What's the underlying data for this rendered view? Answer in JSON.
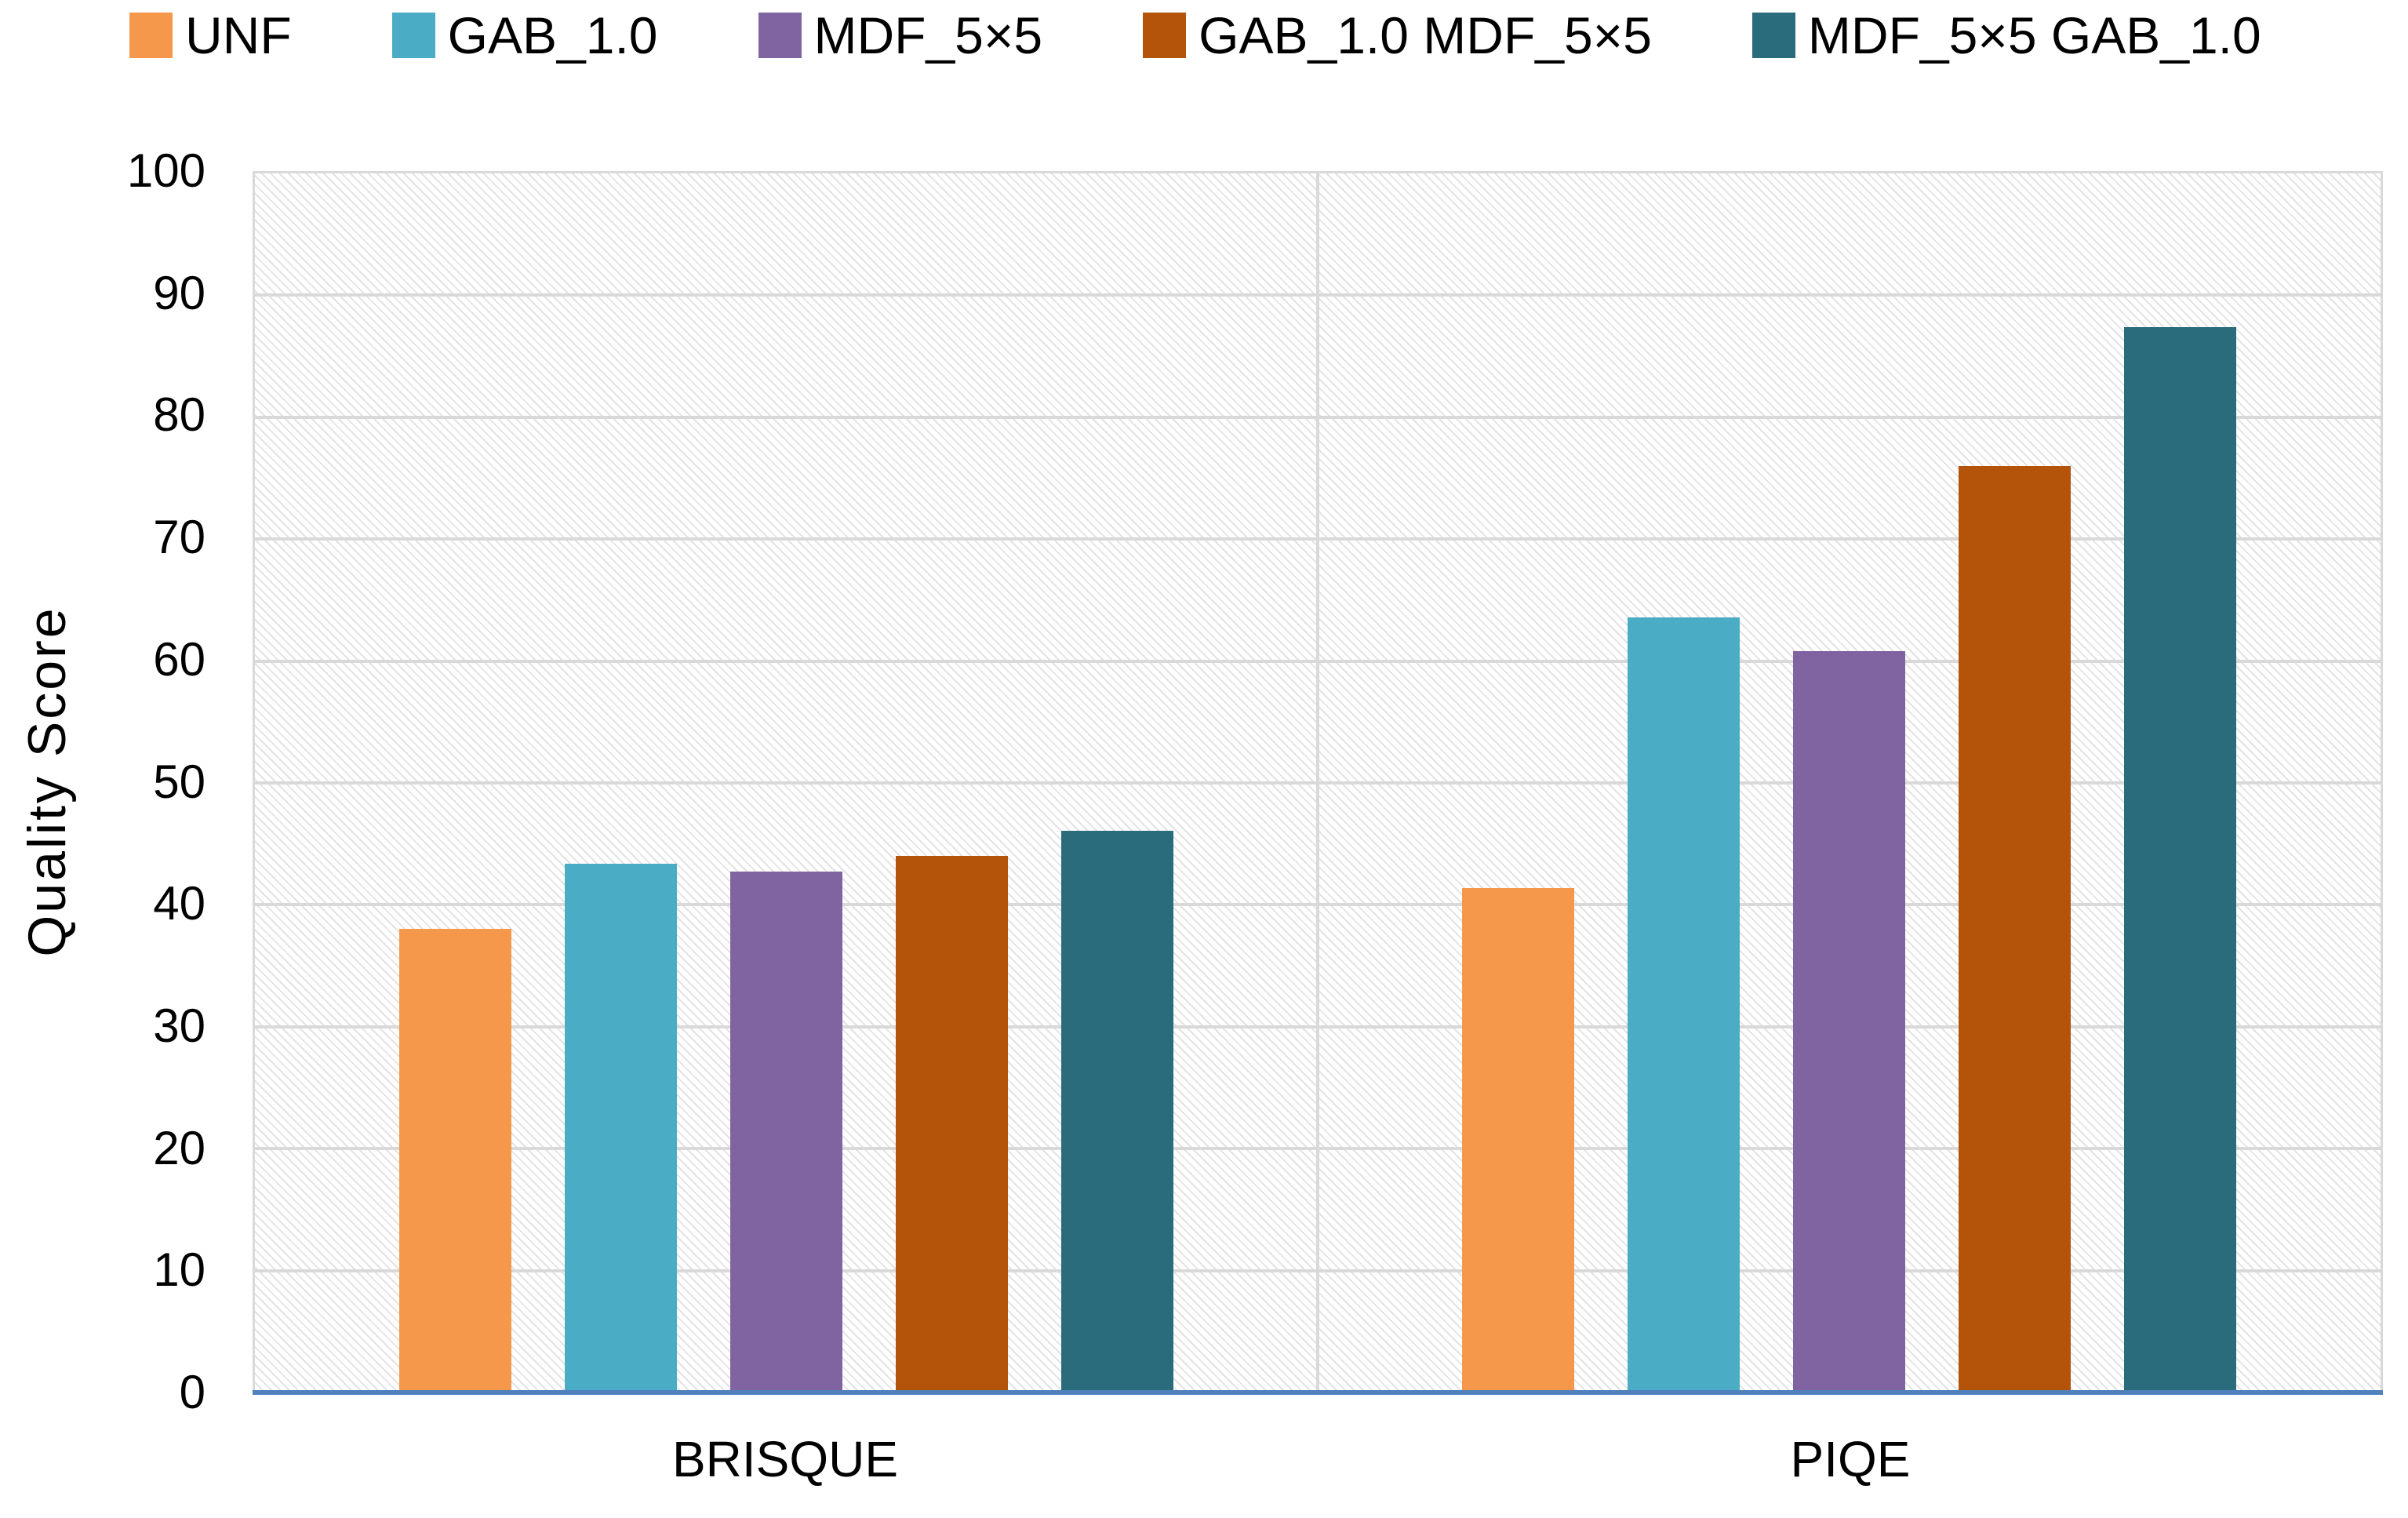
{
  "chart_data": {
    "type": "bar",
    "title": "",
    "ylabel": "Quality Score",
    "xlabel": "",
    "ylim": [
      0,
      100
    ],
    "yticks": [
      0,
      10,
      20,
      30,
      40,
      50,
      60,
      70,
      80,
      90,
      100
    ],
    "categories": [
      "BRISQUE",
      "PIQE"
    ],
    "series": [
      {
        "name": "UNF",
        "color": "#F6984C",
        "values": [
          38.0,
          41.4
        ]
      },
      {
        "name": "GAB_1.0",
        "color": "#4BACC6",
        "values": [
          43.4,
          63.6
        ]
      },
      {
        "name": "MDF_5×5",
        "color": "#8064A2",
        "values": [
          42.7,
          60.8
        ]
      },
      {
        "name": "GAB_1.0 MDF_5×5",
        "color": "#B4540A",
        "values": [
          44.0,
          76.0
        ]
      },
      {
        "name": "MDF_5×5 GAB_1.0",
        "color": "#2A6B7C",
        "values": [
          46.1,
          87.4
        ]
      }
    ],
    "legend_position": "top",
    "grid": true,
    "plot_background": "diagonal-hatch",
    "colors": {
      "axis_line": "#4F81BD",
      "gridline": "#D9D9D9",
      "hatch_line": "#E3E3E3",
      "text": "#000000"
    }
  }
}
